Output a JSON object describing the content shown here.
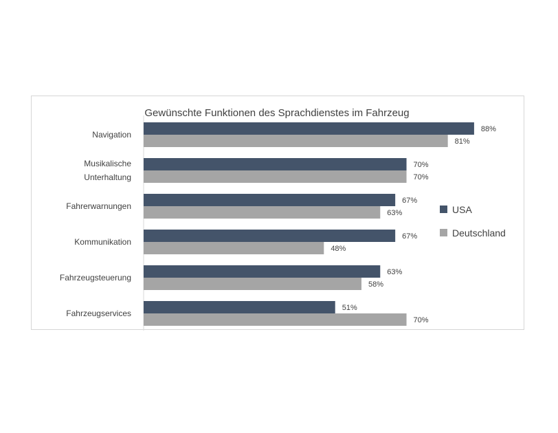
{
  "chart_data": {
    "type": "bar",
    "orientation": "horizontal",
    "title": "Gewünschte Funktionen  des Sprachdienstes im Fahrzeug",
    "categories": [
      [
        "Navigation"
      ],
      [
        "Musikalische",
        "Unterhaltung"
      ],
      [
        "Fahrerwarnungen"
      ],
      [
        "Kommunikation"
      ],
      [
        "Fahrzeugsteuerung"
      ],
      [
        "Fahrzeugservices"
      ]
    ],
    "series": [
      {
        "name": "USA",
        "color": "#44546a",
        "values": [
          88,
          70,
          67,
          67,
          63,
          51
        ]
      },
      {
        "name": "Deutschland",
        "color": "#a5a5a5",
        "values": [
          81,
          70,
          63,
          48,
          58,
          70
        ]
      }
    ],
    "value_suffix": "%",
    "xlim": [
      0,
      100
    ],
    "grid": false,
    "legend_position": "right"
  }
}
